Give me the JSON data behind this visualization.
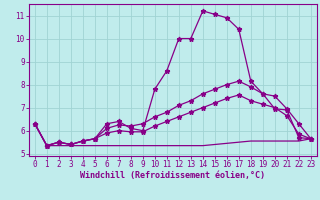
{
  "xlabel": "Windchill (Refroidissement éolien,°C)",
  "background_color": "#c0ecec",
  "grid_color": "#a0d4d4",
  "line_color": "#880088",
  "spine_color": "#880088",
  "xlim": [
    -0.5,
    23.5
  ],
  "ylim": [
    4.9,
    11.5
  ],
  "yticks": [
    5,
    6,
    7,
    8,
    9,
    10,
    11
  ],
  "xticks": [
    0,
    1,
    2,
    3,
    4,
    5,
    6,
    7,
    8,
    9,
    10,
    11,
    12,
    13,
    14,
    15,
    16,
    17,
    18,
    19,
    20,
    21,
    22,
    23
  ],
  "curve1_x": [
    0,
    1,
    2,
    3,
    4,
    5,
    6,
    7,
    8,
    9,
    10,
    11,
    12,
    13,
    14,
    15,
    16,
    17,
    18,
    19,
    20,
    21,
    22,
    23
  ],
  "curve1_y": [
    6.3,
    5.35,
    5.5,
    5.4,
    5.55,
    5.65,
    6.3,
    6.4,
    6.1,
    6.0,
    7.8,
    8.6,
    10.0,
    10.0,
    11.2,
    11.05,
    10.9,
    10.4,
    8.15,
    7.6,
    6.95,
    6.9,
    5.7,
    5.65
  ],
  "curve2_x": [
    0,
    1,
    2,
    3,
    4,
    5,
    6,
    7,
    8,
    9,
    10,
    11,
    12,
    13,
    14,
    15,
    16,
    17,
    18,
    19,
    20,
    21,
    22,
    23
  ],
  "curve2_y": [
    6.3,
    5.35,
    5.5,
    5.4,
    5.55,
    5.65,
    6.1,
    6.25,
    6.2,
    6.3,
    6.6,
    6.8,
    7.1,
    7.3,
    7.6,
    7.8,
    8.0,
    8.15,
    7.9,
    7.6,
    7.5,
    6.95,
    6.3,
    5.65
  ],
  "curve3_x": [
    0,
    1,
    2,
    3,
    4,
    5,
    6,
    7,
    8,
    9,
    10,
    11,
    12,
    13,
    14,
    15,
    16,
    17,
    18,
    19,
    20,
    21,
    22,
    23
  ],
  "curve3_y": [
    6.3,
    5.35,
    5.5,
    5.4,
    5.55,
    5.65,
    5.9,
    6.0,
    5.95,
    5.95,
    6.2,
    6.4,
    6.6,
    6.8,
    7.0,
    7.2,
    7.4,
    7.55,
    7.3,
    7.15,
    7.0,
    6.65,
    5.85,
    5.65
  ],
  "curve4_x": [
    0,
    1,
    2,
    3,
    4,
    5,
    6,
    7,
    8,
    9,
    10,
    11,
    12,
    13,
    14,
    15,
    16,
    17,
    18,
    19,
    20,
    21,
    22,
    23
  ],
  "curve4_y": [
    6.3,
    5.35,
    5.35,
    5.35,
    5.35,
    5.35,
    5.35,
    5.35,
    5.35,
    5.35,
    5.35,
    5.35,
    5.35,
    5.35,
    5.35,
    5.4,
    5.45,
    5.5,
    5.55,
    5.55,
    5.55,
    5.55,
    5.55,
    5.65
  ],
  "xlabel_fontsize": 6.0,
  "tick_fontsize": 5.5
}
